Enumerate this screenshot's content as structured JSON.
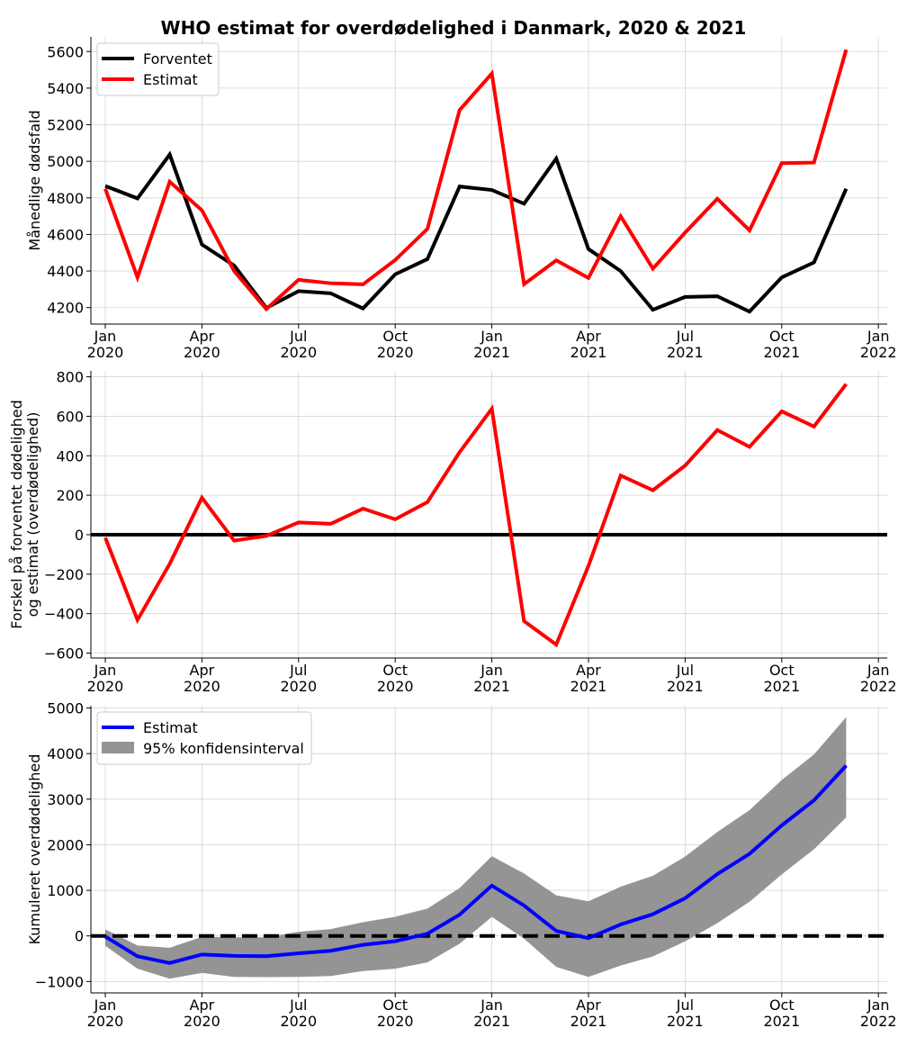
{
  "title": "WHO estimat for overdødelighed i Danmark, 2020 & 2021",
  "colors": {
    "forventet": "#000000",
    "estimat": "#ff0000",
    "cum_estimat": "#0000ff",
    "ci_fill": "#949494",
    "grid": "#d4d4d4"
  },
  "x_ticks": [
    {
      "month": 0,
      "line1": "Jan",
      "line2": "2020"
    },
    {
      "month": 3,
      "line1": "Apr",
      "line2": "2020"
    },
    {
      "month": 6,
      "line1": "Jul",
      "line2": "2020"
    },
    {
      "month": 9,
      "line1": "Oct",
      "line2": "2020"
    },
    {
      "month": 12,
      "line1": "Jan",
      "line2": "2021"
    },
    {
      "month": 15,
      "line1": "Apr",
      "line2": "2021"
    },
    {
      "month": 18,
      "line1": "Jul",
      "line2": "2021"
    },
    {
      "month": 21,
      "line1": "Oct",
      "line2": "2021"
    },
    {
      "month": 24,
      "line1": "Jan",
      "line2": "2022"
    }
  ],
  "chart_data": [
    {
      "type": "line",
      "ylabel": "Månedlige dødsfald",
      "ylabel2": "",
      "ylim": [
        4110,
        5680
      ],
      "yticks": [
        4200,
        4400,
        4600,
        4800,
        5000,
        5200,
        5400,
        5600
      ],
      "grid": true,
      "legend": "top-left",
      "x": [
        0,
        1,
        2,
        3,
        4,
        5,
        6,
        7,
        8,
        9,
        10,
        11,
        12,
        13,
        14,
        15,
        16,
        17,
        18,
        19,
        20,
        21,
        22,
        23
      ],
      "series": [
        {
          "name": "Forventet",
          "color": "#000000",
          "values": [
            4865,
            4797,
            5037,
            4545,
            4430,
            4198,
            4290,
            4278,
            4195,
            4382,
            4465,
            4862,
            4843,
            4768,
            5015,
            4520,
            4400,
            4188,
            4258,
            4262,
            4178,
            4365,
            4447,
            4850
          ]
        },
        {
          "name": "Estimat",
          "color": "#ff0000",
          "values": [
            4850,
            4365,
            4888,
            4732,
            4400,
            4192,
            4352,
            4333,
            4327,
            4460,
            4630,
            5280,
            5480,
            4328,
            4458,
            4362,
            4700,
            4413,
            4610,
            4795,
            4622,
            4990,
            4993,
            5610
          ]
        }
      ]
    },
    {
      "type": "line",
      "ylabel": "Forskel på forventet dødelighed",
      "ylabel2": "og estimat (overdødelighed)",
      "ylim": [
        -625,
        830
      ],
      "yticks": [
        -600,
        -400,
        -200,
        0,
        200,
        400,
        600,
        800
      ],
      "grid": true,
      "legend": "none",
      "hline": 0,
      "x": [
        0,
        1,
        2,
        3,
        4,
        5,
        6,
        7,
        8,
        9,
        10,
        11,
        12,
        13,
        14,
        15,
        16,
        17,
        18,
        19,
        20,
        21,
        22,
        23
      ],
      "series": [
        {
          "name": "",
          "color": "#ff0000",
          "values": [
            -15,
            -432,
            -148,
            187,
            -30,
            -6,
            62,
            55,
            132,
            78,
            165,
            418,
            638,
            -438,
            -557,
            -158,
            300,
            225,
            350,
            530,
            445,
            625,
            548,
            763
          ]
        }
      ]
    },
    {
      "type": "area",
      "ylabel": "Kumuleret overdødelighed",
      "ylabel2": "",
      "ylim": [
        -1250,
        5050
      ],
      "yticks": [
        -1000,
        0,
        1000,
        2000,
        3000,
        4000,
        5000
      ],
      "grid": true,
      "legend": "top-left",
      "hline": 0,
      "x": [
        0,
        1,
        2,
        3,
        4,
        5,
        6,
        7,
        8,
        9,
        10,
        11,
        12,
        13,
        14,
        15,
        16,
        17,
        18,
        19,
        20,
        21,
        22,
        23
      ],
      "series": [
        {
          "name": "Estimat",
          "color": "#0000ff",
          "values": [
            -15,
            -447,
            -595,
            -408,
            -438,
            -444,
            -382,
            -327,
            -195,
            -117,
            48,
            466,
            1104,
            666,
            109,
            -49,
            251,
            476,
            826,
            1356,
            1801,
            2426,
            2974,
            3737
          ]
        }
      ],
      "band": {
        "name": "95% konfidensinterval",
        "color": "#949494",
        "lower": [
          -215,
          -720,
          -940,
          -810,
          -900,
          -905,
          -900,
          -880,
          -770,
          -720,
          -580,
          -170,
          420,
          -60,
          -680,
          -900,
          -650,
          -450,
          -120,
          280,
          750,
          1350,
          1900,
          2600
        ],
        "upper": [
          145,
          -210,
          -260,
          -20,
          -30,
          -30,
          90,
          150,
          300,
          420,
          600,
          1050,
          1750,
          1370,
          890,
          760,
          1080,
          1320,
          1740,
          2280,
          2760,
          3420,
          3980,
          4800
        ]
      }
    }
  ]
}
